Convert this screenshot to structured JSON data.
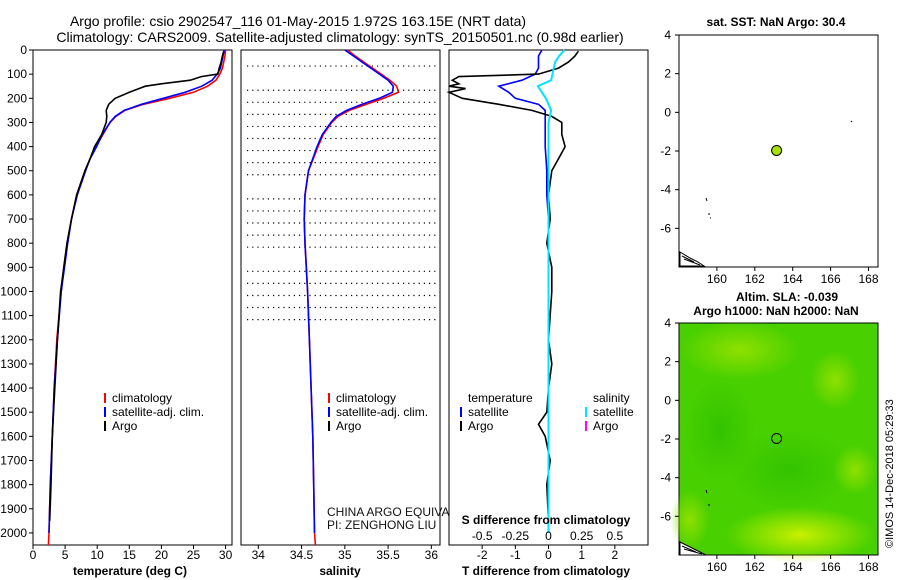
{
  "title": {
    "line1": "Argo profile: csio 2902547_116 01-May-2015 1.972S 163.15E (NRT data)",
    "line2": "Climatology: CARS2009. Satellite-adjusted climatology: synTS_20150501.nc (0.98d earlier)"
  },
  "colors": {
    "climatology": "#ff0000",
    "satellite": "#0000ff",
    "argo": "#000000",
    "salinity_sat": "#00e5ff",
    "salinity_argo": "#ff00ff",
    "marker": "#a8e000"
  },
  "footer": {
    "credit": "©IMOS 14-Dec-2018 05:29:33"
  },
  "chart_data": [
    {
      "id": "temperature",
      "type": "line",
      "xlabel": "temperature (deg C)",
      "ylabel": "",
      "xlim": [
        0,
        31
      ],
      "ylim": [
        2050,
        0
      ],
      "xticks": [
        0,
        5,
        10,
        15,
        20,
        25,
        30
      ],
      "yticks": [
        0,
        100,
        200,
        300,
        400,
        500,
        600,
        700,
        800,
        900,
        1000,
        1100,
        1200,
        1300,
        1400,
        1500,
        1600,
        1700,
        1800,
        1900,
        2000
      ],
      "legend": [
        "climatology",
        "satellite-adj. clim.",
        "Argo"
      ],
      "series": [
        {
          "name": "climatology",
          "color": "#ff0000",
          "depth": [
            0,
            25,
            50,
            75,
            100,
            125,
            150,
            175,
            200,
            225,
            250,
            275,
            300,
            350,
            400,
            450,
            500,
            600,
            700,
            800,
            900,
            1000,
            1200,
            1400,
            1600,
            1800,
            2000,
            2050
          ],
          "values": [
            30.0,
            29.9,
            29.7,
            29.5,
            29.1,
            28.5,
            27.2,
            25.0,
            21.3,
            17.2,
            14.3,
            12.9,
            12.0,
            10.9,
            9.8,
            8.9,
            8.1,
            6.8,
            6.0,
            5.3,
            4.8,
            4.4,
            3.7,
            3.3,
            3.0,
            2.7,
            2.5,
            2.4
          ]
        },
        {
          "name": "satellite-adj. clim.",
          "color": "#0000ff",
          "depth": [
            0,
            25,
            50,
            75,
            100,
            125,
            150,
            175,
            200,
            225,
            250,
            275,
            300,
            350,
            400,
            450,
            500,
            600,
            700,
            800,
            900,
            1000,
            1200,
            1400,
            1600,
            1800,
            2000
          ],
          "values": [
            29.8,
            29.6,
            29.4,
            29.2,
            28.7,
            27.9,
            26.3,
            23.7,
            20.3,
            16.9,
            14.2,
            12.8,
            12.0,
            10.8,
            9.9,
            8.9,
            8.2,
            6.9,
            6.0,
            5.4,
            4.9,
            4.4,
            3.8,
            3.3,
            3.0,
            2.7,
            2.5
          ]
        },
        {
          "name": "Argo",
          "color": "#000000",
          "depth": [
            5,
            25,
            50,
            75,
            100,
            110,
            125,
            140,
            150,
            160,
            175,
            200,
            225,
            250,
            275,
            300,
            350,
            400,
            450,
            500,
            600,
            700,
            800,
            900,
            1000,
            1200,
            1400,
            1600,
            1800,
            1950
          ],
          "values": [
            29.7,
            29.5,
            29.3,
            29.0,
            28.8,
            26.2,
            24.5,
            20.0,
            17.5,
            16.5,
            15.0,
            12.8,
            11.8,
            11.4,
            11.5,
            11.4,
            10.7,
            9.6,
            8.9,
            8.1,
            6.8,
            6.0,
            5.3,
            4.8,
            4.3,
            3.8,
            3.4,
            3.0,
            2.8,
            2.6
          ]
        }
      ]
    },
    {
      "id": "salinity",
      "type": "line",
      "xlabel": "salinity",
      "xlim": [
        33.8,
        36.1
      ],
      "ylim": [
        2050,
        0
      ],
      "xticks": [
        34,
        34.5,
        35,
        35.5,
        36
      ],
      "legend": [
        "climatology",
        "satellite-adj. clim.",
        "Argo"
      ],
      "note": [
        "CHINA ARGO EQUIVALENT",
        "PI: ZENGHONG LIU"
      ],
      "series": [
        {
          "name": "climatology",
          "color": "#ff0000",
          "depth": [
            0,
            25,
            50,
            75,
            100,
            125,
            150,
            175,
            200,
            225,
            250,
            275,
            300,
            350,
            400,
            500,
            600,
            700,
            800,
            1000,
            1200,
            1400,
            1600,
            1800,
            2000,
            2050
          ],
          "values": [
            35.03,
            35.12,
            35.22,
            35.32,
            35.42,
            35.52,
            35.6,
            35.62,
            35.45,
            35.25,
            35.05,
            34.92,
            34.85,
            34.75,
            34.69,
            34.58,
            34.54,
            34.53,
            34.54,
            34.57,
            34.59,
            34.61,
            34.63,
            34.64,
            34.65,
            34.66
          ]
        },
        {
          "name": "satellite-adj. clim.",
          "color": "#0000ff",
          "depth": [
            0,
            25,
            50,
            75,
            100,
            125,
            150,
            175,
            200,
            225,
            250,
            275,
            300,
            350,
            400,
            500,
            600,
            700,
            800,
            1000,
            1200,
            1400,
            1600,
            1800,
            2000
          ],
          "values": [
            35.0,
            35.1,
            35.2,
            35.3,
            35.4,
            35.5,
            35.56,
            35.55,
            35.4,
            35.2,
            35.02,
            34.9,
            34.84,
            34.74,
            34.68,
            34.58,
            34.54,
            34.53,
            34.54,
            34.57,
            34.59,
            34.61,
            34.63,
            34.64,
            34.65
          ]
        }
      ]
    },
    {
      "id": "difference",
      "type": "line",
      "xlabel": "T difference from climatology",
      "xlabel_top": "S difference from climatology",
      "xlim": [
        -3,
        3
      ],
      "ylim": [
        2050,
        0
      ],
      "xticks": [
        -2,
        -1,
        0,
        1,
        2
      ],
      "xtick_labels": [
        "-2",
        "-1",
        "0",
        "1",
        "2"
      ],
      "xticks_s": [
        -0.5,
        -0.25,
        0,
        0.25,
        0.5
      ],
      "xtick_labels_s": [
        "-0.5",
        "-0.25",
        "0",
        "0.25",
        "0.5"
      ],
      "s_scale": 4,
      "legend_temperature": {
        "title": "temperature",
        "items": [
          "satellite",
          "Argo"
        ]
      },
      "legend_salinity": {
        "title": "salinity",
        "items": [
          "satellite",
          "Argo"
        ]
      },
      "series": [
        {
          "name": "T satellite",
          "color": "#0000ff",
          "depth": [
            0,
            25,
            50,
            75,
            100,
            125,
            150,
            175,
            200,
            225,
            250,
            275,
            300,
            350,
            400,
            500,
            600,
            700,
            800,
            1000,
            1200,
            1400,
            1600,
            1800,
            2000
          ],
          "values": [
            -0.2,
            -0.3,
            -0.3,
            -0.3,
            -0.4,
            -0.8,
            -1.5,
            -1.2,
            -1.0,
            -0.3,
            -0.1,
            -0.1,
            -0.1,
            -0.1,
            -0.1,
            -0.05,
            -0.05,
            0,
            0,
            0,
            0,
            0,
            0,
            0,
            0
          ]
        },
        {
          "name": "T Argo",
          "color": "#000000",
          "depth": [
            5,
            25,
            50,
            75,
            100,
            110,
            125,
            140,
            150,
            160,
            175,
            200,
            225,
            250,
            275,
            300,
            350,
            400,
            450,
            500,
            600,
            700,
            800,
            900,
            1000,
            1200,
            1300,
            1400,
            1500,
            1550,
            1600,
            1700,
            1800,
            1950
          ],
          "values": [
            0.9,
            0.8,
            0.6,
            0.3,
            -0.3,
            -2.7,
            -2.9,
            -2.7,
            -3.0,
            -2.5,
            -3.0,
            -2.6,
            -1.5,
            -0.5,
            0.1,
            0.4,
            0.4,
            0.5,
            0.3,
            0.1,
            0.0,
            0.05,
            -0.05,
            0.1,
            0.1,
            0.0,
            0.1,
            0.0,
            -0.05,
            -0.3,
            -0.1,
            0.05,
            -0.05,
            0.0
          ]
        },
        {
          "name": "S satellite",
          "color": "#00e5ff",
          "depth": [
            0,
            25,
            50,
            75,
            100,
            125,
            150,
            175,
            200,
            225,
            250,
            300,
            350,
            400,
            500,
            600,
            800,
            1000,
            1200,
            1400,
            1600,
            1800,
            2000
          ],
          "values": [
            0.12,
            0.08,
            0.05,
            0.04,
            0.03,
            0.02,
            -0.08,
            -0.05,
            -0.02,
            0.0,
            0.02,
            0.0,
            0.0,
            0.0,
            0.0,
            0.0,
            0.0,
            0.0,
            0.0,
            0.0,
            0.0,
            0.0,
            0.0
          ]
        }
      ]
    },
    {
      "id": "sst_map",
      "type": "scatter",
      "title": "sat. SST: NaN Argo: 30.4",
      "xlim": [
        158,
        168.5
      ],
      "ylim": [
        -8,
        4
      ],
      "xticks": [
        160,
        162,
        164,
        166,
        168
      ],
      "yticks": [
        -6,
        -4,
        -2,
        0,
        2,
        4
      ],
      "points": [
        {
          "lon": 163.15,
          "lat": -1.972,
          "label": "Argo"
        }
      ]
    },
    {
      "id": "sla_map",
      "type": "heatmap",
      "title": "Altim. SLA: -0.039",
      "subtitle": "Argo h1000: NaN h2000: NaN",
      "xlim": [
        158,
        168.5
      ],
      "ylim": [
        -8,
        4
      ],
      "xticks": [
        160,
        162,
        164,
        166,
        168
      ],
      "yticks": [
        -6,
        -4,
        -2,
        0,
        2,
        4
      ],
      "points": [
        {
          "lon": 163.15,
          "lat": -1.972,
          "label": "Argo"
        }
      ]
    }
  ]
}
